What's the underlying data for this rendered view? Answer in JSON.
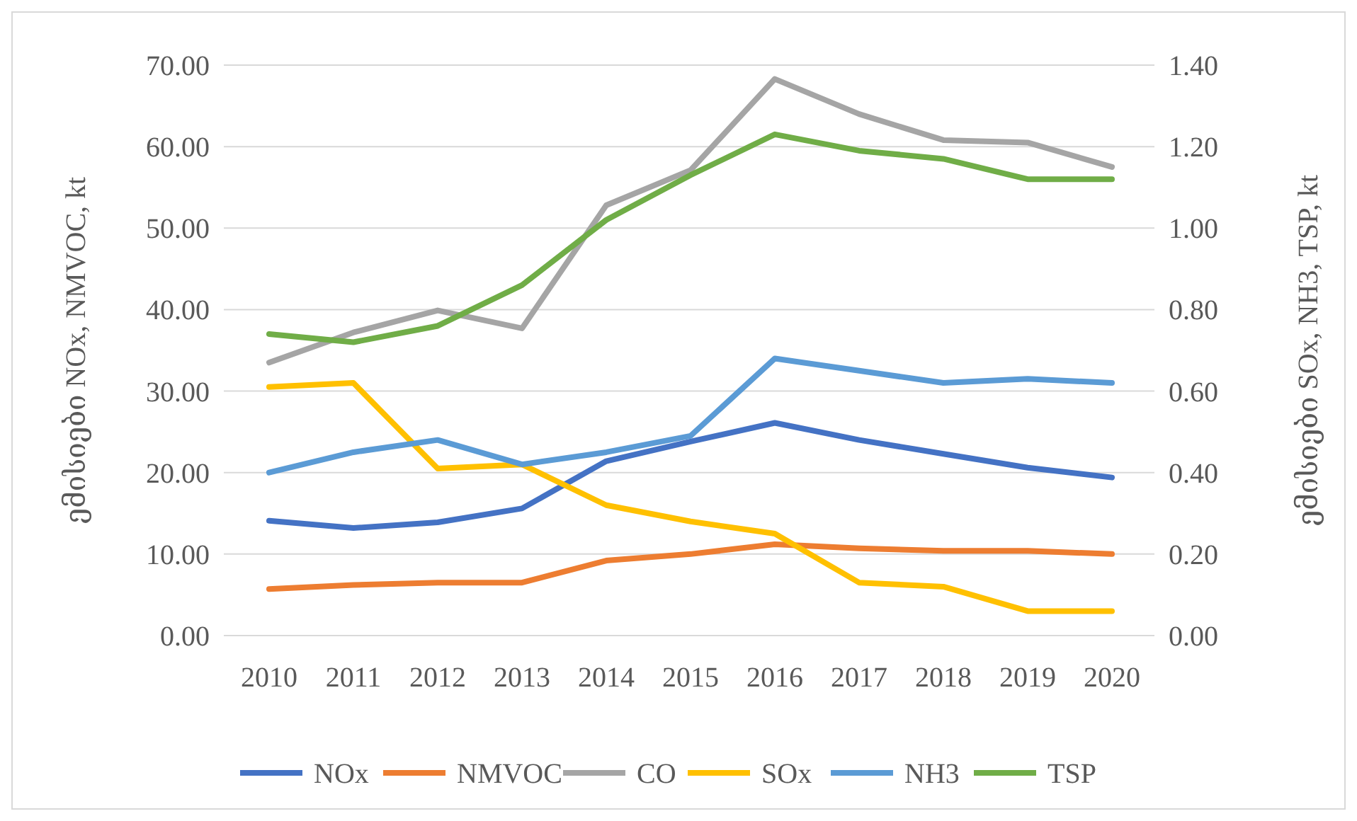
{
  "chart_data": {
    "type": "line",
    "ylabel": "ემისიები NOx, NMVOC, kt",
    "y2label": "ემისიები SOx, NH3, TSP, kt",
    "categories": [
      "2010",
      "2011",
      "2012",
      "2013",
      "2014",
      "2015",
      "2016",
      "2017",
      "2018",
      "2019",
      "2020"
    ],
    "series": [
      {
        "name": "NOx",
        "color": "#4472c4",
        "values": [
          14.1,
          13.2,
          13.9,
          15.6,
          21.4,
          23.8,
          26.1,
          24.0,
          22.3,
          20.6,
          19.4
        ]
      },
      {
        "name": "NMVOC",
        "color": "#ed7d31",
        "values": [
          5.7,
          6.2,
          6.5,
          6.5,
          9.2,
          10.0,
          11.2,
          10.7,
          10.4,
          10.4,
          10.0
        ]
      },
      {
        "name": "CO",
        "color": "#a5a5a5",
        "values": [
          33.5,
          37.2,
          39.9,
          37.7,
          52.8,
          57.1,
          68.3,
          64.0,
          60.8,
          60.5,
          57.5
        ]
      },
      {
        "name": "SOx",
        "color": "#ffc000",
        "axis": "y2",
        "values": [
          0.61,
          0.62,
          0.41,
          0.42,
          0.32,
          0.28,
          0.25,
          0.13,
          0.12,
          0.06,
          0.06
        ]
      },
      {
        "name": "NH3",
        "color": "#5b9bd5",
        "axis": "y2",
        "values": [
          0.4,
          0.45,
          0.48,
          0.42,
          0.45,
          0.49,
          0.68,
          0.65,
          0.62,
          0.63,
          0.62
        ]
      },
      {
        "name": "TSP",
        "color": "#70ad47",
        "axis": "y2",
        "values": [
          0.74,
          0.72,
          0.76,
          0.86,
          1.02,
          1.13,
          1.23,
          1.19,
          1.17,
          1.12,
          1.12
        ]
      }
    ],
    "ylim": [
      0,
      70
    ],
    "yticks": [
      {
        "value": 0,
        "label": "0.00"
      },
      {
        "value": 10,
        "label": "10.00"
      },
      {
        "value": 20,
        "label": "20.00"
      },
      {
        "value": 30,
        "label": "30.00"
      },
      {
        "value": 40,
        "label": "40.00"
      },
      {
        "value": 50,
        "label": "50.00"
      },
      {
        "value": 60,
        "label": "60.00"
      },
      {
        "value": 70,
        "label": "70.00"
      }
    ],
    "y2lim": [
      0,
      1.4
    ],
    "y2ticks": [
      {
        "value": 0,
        "label": "0.00"
      },
      {
        "value": 0.2,
        "label": "0.20"
      },
      {
        "value": 0.4,
        "label": "0.40"
      },
      {
        "value": 0.6,
        "label": "0.60"
      },
      {
        "value": 0.8,
        "label": "0.80"
      },
      {
        "value": 1.0,
        "label": "1.00"
      },
      {
        "value": 1.2,
        "label": "1.20"
      },
      {
        "value": 1.4,
        "label": "1.40"
      }
    ],
    "grid": "y",
    "legend": "bottom",
    "marker": "none",
    "line_style": "solid"
  }
}
